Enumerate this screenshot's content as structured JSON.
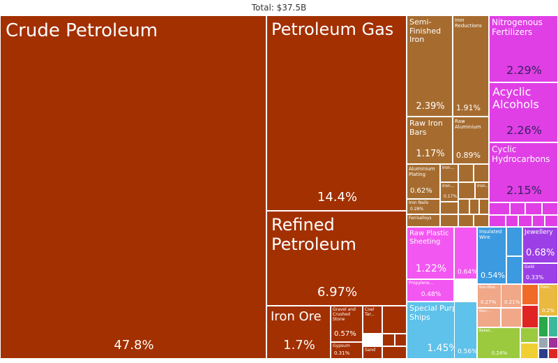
{
  "header": {
    "title": "Total: $37.5B"
  },
  "colors": {
    "mineral": "#a33001",
    "metals": "#a66c2f",
    "chemicals": "#e03fe6",
    "plastics": "#f357f1",
    "machines": "#3b9ae0",
    "precious": "#9c3fe6",
    "transport": "#5ec2ea",
    "stone": "#f0a889",
    "textiles": "#9bca3f",
    "misc_orange": "#f06a28",
    "misc_yellow": "#f0cf34",
    "misc_gold": "#eab93f",
    "misc_green": "#2aa84a",
    "misc_red": "#e02424",
    "misc_teal": "#3bb99a",
    "misc_purple": "#a2309a",
    "misc_gray": "#9aa7b2",
    "misc_navy": "#2c3e8a"
  },
  "chart_data": {
    "type": "treemap",
    "total_label": "Total: $37.5B",
    "items": [
      {
        "name": "Crude Petroleum",
        "share": "47.8%",
        "group": "mineral"
      },
      {
        "name": "Petroleum Gas",
        "share": "14.4%",
        "group": "mineral"
      },
      {
        "name": "Refined Petroleum",
        "share": "6.97%",
        "group": "mineral"
      },
      {
        "name": "Iron Ore",
        "share": "1.7%",
        "group": "mineral"
      },
      {
        "name": "Gravel and Crushed Stone",
        "share": "0.57%",
        "group": "mineral"
      },
      {
        "name": "Coal Tar...",
        "share": "",
        "group": "mineral"
      },
      {
        "name": "Gypsum",
        "share": "0.31%",
        "group": "mineral"
      },
      {
        "name": "Sand",
        "share": "",
        "group": "mineral"
      },
      {
        "name": "Semi-Finished Iron",
        "share": "2.39%",
        "group": "metals"
      },
      {
        "name": "Iron Reductions",
        "share": "1.91%",
        "group": "metals"
      },
      {
        "name": "Raw Iron Bars",
        "share": "1.17%",
        "group": "metals"
      },
      {
        "name": "Raw Aluminium",
        "share": "0.89%",
        "group": "metals"
      },
      {
        "name": "Aluminium Plating",
        "share": "0.62%",
        "group": "metals"
      },
      {
        "name": "Iron...",
        "share": "",
        "group": "metals"
      },
      {
        "name": "Iron...",
        "share": "0.17%",
        "group": "metals"
      },
      {
        "name": "Iron...",
        "share": "",
        "group": "metals"
      },
      {
        "name": "Iron Nails",
        "share": "0.28%",
        "group": "metals"
      },
      {
        "name": "Ferroalloys",
        "share": "",
        "group": "metals"
      },
      {
        "name": "Nitrogenous Fertilizers",
        "share": "2.29%",
        "group": "chemicals"
      },
      {
        "name": "Acyclic Alcohols",
        "share": "2.26%",
        "group": "chemicals"
      },
      {
        "name": "Cyclic Hydrocarbons",
        "share": "2.15%",
        "group": "chemicals"
      },
      {
        "name": "Raw Plastic Sheeting",
        "share": "1.22%",
        "group": "plastics"
      },
      {
        "name": "",
        "share": "0.64%",
        "group": "plastics"
      },
      {
        "name": "Propylene...",
        "share": "0.48%",
        "group": "plastics"
      },
      {
        "name": "Insulated Wire",
        "share": "0.54%",
        "group": "machines"
      },
      {
        "name": "Jewellery",
        "share": "0.68%",
        "group": "precious"
      },
      {
        "name": "Gold",
        "share": "0.33%",
        "group": "precious"
      },
      {
        "name": "Special Purpose Ships",
        "share": "1.45%",
        "group": "transport"
      },
      {
        "name": "",
        "share": "0.56%",
        "group": "transport"
      },
      {
        "name": "Non-fillet...",
        "share": "0.27%",
        "group": "stone"
      },
      {
        "name": "",
        "share": "0.21%",
        "group": "stone"
      },
      {
        "name": "Non-...",
        "share": "",
        "group": "stone"
      },
      {
        "name": "Baked...",
        "share": "0.24%",
        "group": "textiles"
      },
      {
        "name": "Polm...",
        "share": "0.2%",
        "group": "misc_gold"
      }
    ]
  }
}
